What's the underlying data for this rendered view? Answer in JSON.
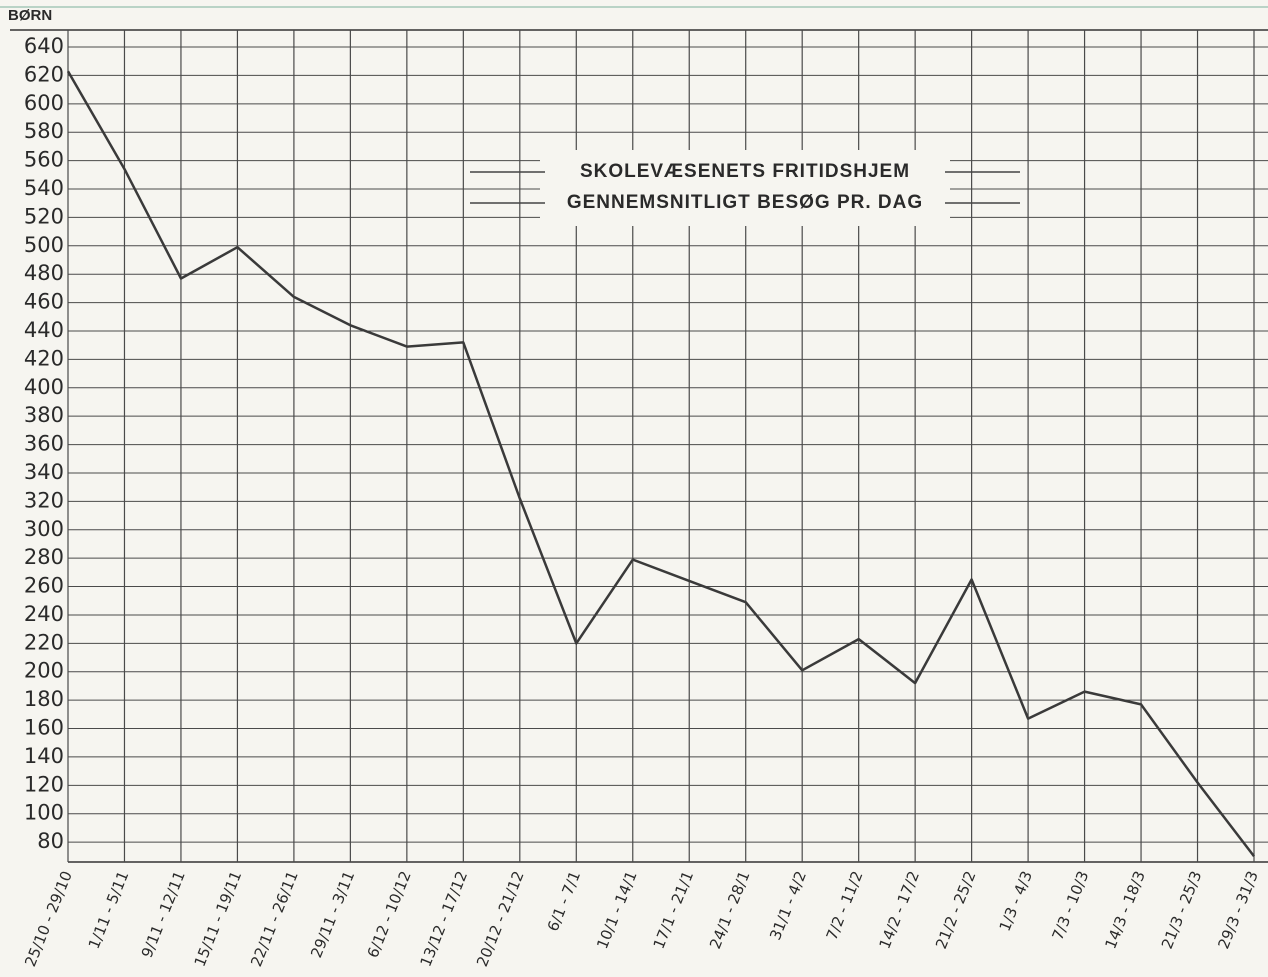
{
  "chart_data": {
    "type": "line",
    "title": "SKOLEVÆSENETS FRITIDSHJEM",
    "subtitle": "GENNEMSNITLIGT BESØG PR. DAG",
    "y_label": "BØRN",
    "categories": [
      "25/10 - 29/10",
      "1/11 - 5/11",
      "9/11 - 12/11",
      "15/11 - 19/11",
      "22/11 - 26/11",
      "29/11 - 3/11",
      "6/12 - 10/12",
      "13/12 - 17/12",
      "20/12 - 21/12",
      "6/1 - 7/1",
      "10/1 - 14/1",
      "17/1 - 21/1",
      "24/1 - 28/1",
      "31/1 - 4/2",
      "7/2 - 11/2",
      "14/2 - 17/2",
      "21/2 - 25/2",
      "1/3 - 4/3",
      "7/3 - 10/3",
      "14/3 - 18/3",
      "21/3 - 25/3",
      "29/3 - 31/3"
    ],
    "series": [
      {
        "name": "Gennemsnitligt besøg",
        "color": "#3a3a3a",
        "values": [
          623,
          554,
          477,
          499,
          464,
          444,
          429,
          432,
          322,
          220,
          279,
          264,
          249,
          201,
          223,
          192,
          265,
          167,
          186,
          177,
          122,
          70
        ]
      }
    ],
    "ylim": [
      66,
      652
    ],
    "yticks": [
      80,
      100,
      120,
      140,
      160,
      180,
      200,
      220,
      240,
      260,
      280,
      300,
      320,
      340,
      360,
      380,
      400,
      420,
      440,
      460,
      480,
      500,
      520,
      540,
      560,
      580,
      600,
      620,
      640
    ],
    "grid": true
  }
}
